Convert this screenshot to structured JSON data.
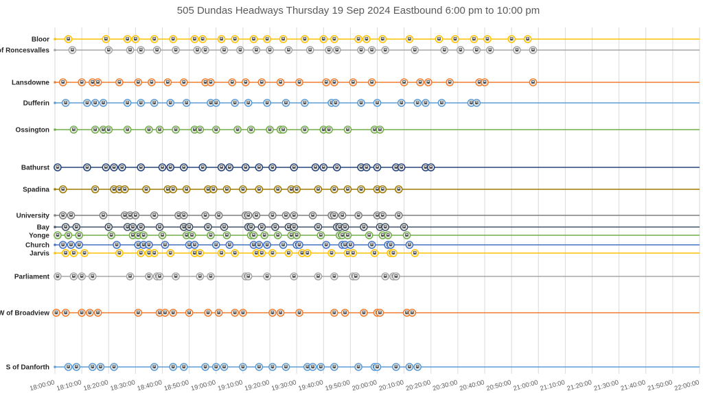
{
  "chart_data": {
    "type": "scatter",
    "title": "505 Dundas Headways Thursday 19 Sep 2024 Eastbound 6:00 pm to 10:00 pm",
    "xlim": [
      "18:00:00",
      "22:00:00"
    ],
    "x_ticks": [
      "18:00:00",
      "18:10:00",
      "18:20:00",
      "18:30:00",
      "18:40:00",
      "18:50:00",
      "19:00:00",
      "19:10:00",
      "19:20:00",
      "19:30:00",
      "19:40:00",
      "19:50:00",
      "20:00:00",
      "20:10:00",
      "20:20:00",
      "20:30:00",
      "20:40:00",
      "20:50:00",
      "21:00:00",
      "21:10:00",
      "21:20:00",
      "21:30:00",
      "21:40:00",
      "21:50:00",
      "22:00:00"
    ],
    "grid": "vertical",
    "marker": "streetcar-icon",
    "series": [
      {
        "name": "Bloor",
        "color": "#ffc000",
        "x": [
          "18:05:00",
          "18:19:00",
          "18:27:00",
          "18:30:00",
          "18:37:00",
          "18:44:00",
          "18:52:00",
          "18:55:00",
          "19:02:00",
          "19:07:00",
          "19:14:00",
          "19:19:00",
          "19:25:00",
          "19:33:00",
          "19:40:00",
          "19:44:00",
          "19:53:00",
          "19:56:00",
          "20:02:00",
          "20:12:00",
          "20:23:00",
          "20:29:00",
          "20:36:00",
          "20:41:00",
          "20:50:00",
          "20:56:00"
        ]
      },
      {
        "name": "E of Roncesvalles",
        "color": "#a5a5a5",
        "x": [
          "18:06:30",
          "18:20:00",
          "18:28:00",
          "18:32:00",
          "18:38:00",
          "18:45:00",
          "18:53:00",
          "18:56:00",
          "19:03:00",
          "19:09:00",
          "19:15:00",
          "19:20:00",
          "19:27:00",
          "19:35:00",
          "19:42:00",
          "19:45:00",
          "19:54:00",
          "19:58:00",
          "20:03:00",
          "20:14:00",
          "20:25:00",
          "20:31:00",
          "20:37:00",
          "20:42:00",
          "20:52:00",
          "20:58:00"
        ]
      },
      {
        "name": "Lansdowne",
        "color": "#ed7d31",
        "x": [
          "18:03:00",
          "18:10:00",
          "18:14:00",
          "18:16:00",
          "18:24:00",
          "18:31:00",
          "18:36:00",
          "18:42:00",
          "18:48:00",
          "18:56:00",
          "18:58:00",
          "19:06:00",
          "19:11:00",
          "19:17:00",
          "19:24:00",
          "19:31:00",
          "19:41:00",
          "19:44:00",
          "19:51:00",
          "19:58:00",
          "20:10:00",
          "20:16:00",
          "20:19:00",
          "20:27:00",
          "20:38:00",
          "20:40:00",
          "20:58:00"
        ]
      },
      {
        "name": "Dufferin",
        "color": "#5b9bd5",
        "x": [
          "18:04:00",
          "18:12:00",
          "18:15:00",
          "18:18:00",
          "18:27:00",
          "18:32:00",
          "18:37:00",
          "18:43:00",
          "18:49:00",
          "18:58:00",
          "19:00:00",
          "19:07:00",
          "19:12:00",
          "19:19:00",
          "19:26:00",
          "19:33:00",
          "19:43:00",
          "19:44:30",
          "19:54:00",
          "20:00:00",
          "20:09:00",
          "20:15:00",
          "20:18:00",
          "20:24:00",
          "20:35:00",
          "20:37:00"
        ]
      },
      {
        "name": "Ossington",
        "color": "#70ad47",
        "x": [
          "18:07:00",
          "18:15:00",
          "18:18:00",
          "18:20:00",
          "18:27:00",
          "18:35:00",
          "18:39:00",
          "18:45:00",
          "18:52:00",
          "18:54:00",
          "19:00:00",
          "19:08:00",
          "19:13:00",
          "19:20:00",
          "19:24:00",
          "19:25:00",
          "19:33:00",
          "19:40:00",
          "19:42:00",
          "19:49:00",
          "19:59:00",
          "20:01:00"
        ]
      },
      {
        "name": "Bathurst",
        "color": "#264478",
        "x": [
          "18:01:00",
          "18:12:00",
          "18:19:00",
          "18:22:00",
          "18:25:00",
          "18:32:00",
          "18:40:00",
          "18:43:00",
          "18:48:00",
          "18:55:00",
          "19:02:00",
          "19:05:00",
          "19:11:00",
          "19:16:00",
          "19:21:00",
          "19:29:00",
          "19:37:00",
          "19:40:00",
          "19:45:00",
          "19:54:00",
          "19:56:00",
          "20:00:00",
          "20:07:00",
          "20:09:00",
          "20:18:00",
          "20:20:00"
        ]
      },
      {
        "name": "Spadina",
        "color": "#9e7a00",
        "x": [
          "18:03:00",
          "18:15:00",
          "18:22:00",
          "18:24:00",
          "18:26:00",
          "18:34:00",
          "18:42:00",
          "18:44:00",
          "18:49:00",
          "18:57:00",
          "18:59:00",
          "19:04:00",
          "19:10:00",
          "19:16:00",
          "19:23:00",
          "19:28:00",
          "19:30:00",
          "19:38:00",
          "19:44:00",
          "19:49:00",
          "19:54:00",
          "20:00:00",
          "20:02:00",
          "20:08:00"
        ]
      },
      {
        "name": "University",
        "color": "#7f7f7f",
        "x": [
          "18:03:00",
          "18:06:00",
          "18:18:00",
          "18:26:00",
          "18:28:00",
          "18:30:00",
          "18:37:00",
          "18:46:00",
          "18:48:00",
          "18:56:00",
          "19:01:00",
          "19:11:00",
          "19:12:00",
          "19:15:00",
          "19:21:00",
          "19:26:00",
          "19:29:00",
          "19:36:00",
          "19:43:00",
          "19:44:00",
          "19:47:00",
          "19:53:00",
          "20:00:00",
          "20:02:00",
          "20:08:00"
        ]
      },
      {
        "name": "Bay",
        "color": "#44546a",
        "x": [
          "18:04:00",
          "18:08:00",
          "18:20:00",
          "18:27:00",
          "18:29:00",
          "18:32:00",
          "18:39:00",
          "18:48:00",
          "18:50:00",
          "18:57:00",
          "19:03:00",
          "19:12:00",
          "19:13:00",
          "19:17:00",
          "19:22:00",
          "19:27:00",
          "19:29:00",
          "19:38:00",
          "19:45:00",
          "19:46:00",
          "19:48:00",
          "19:55:00",
          "20:01:00",
          "20:03:00",
          "20:10:00"
        ]
      },
      {
        "name": "Yonge",
        "color": "#70ad47",
        "x": [
          "18:01:00",
          "18:05:00",
          "18:09:00",
          "18:21:00",
          "18:29:00",
          "18:31:00",
          "18:33:00",
          "18:40:00",
          "18:49:00",
          "18:51:00",
          "18:58:00",
          "19:04:00",
          "19:13:00",
          "19:14:00",
          "19:18:00",
          "19:23:00",
          "19:28:00",
          "19:30:00",
          "19:39:00",
          "19:46:00",
          "19:47:00",
          "19:49:00",
          "19:57:00",
          "20:02:00",
          "20:04:00",
          "20:11:00"
        ]
      },
      {
        "name": "Church",
        "color": "#4472c4",
        "x": [
          "18:03:00",
          "18:06:00",
          "18:09:00",
          "18:23:00",
          "18:31:00",
          "18:33:00",
          "18:35:00",
          "18:41:00",
          "18:50:00",
          "18:52:00",
          "19:00:00",
          "19:05:00",
          "19:14:00",
          "19:16:00",
          "19:19:00",
          "19:25:00",
          "19:30:00",
          "19:31:00",
          "19:41:00",
          "19:47:00",
          "19:48:00",
          "19:50:00",
          "19:58:00",
          "20:04:00",
          "20:05:00",
          "20:12:00"
        ]
      },
      {
        "name": "Jarvis",
        "color": "#ffc000",
        "x": [
          "18:04:00",
          "18:07:00",
          "18:11:00",
          "18:24:00",
          "18:32:00",
          "18:35:00",
          "18:37:00",
          "18:43:00",
          "18:52:00",
          "18:54:00",
          "19:02:00",
          "19:07:00",
          "19:15:00",
          "19:17:00",
          "19:21:00",
          "19:27:00",
          "19:32:00",
          "19:34:00",
          "19:43:00",
          "19:49:00",
          "19:51:00",
          "19:59:00",
          "20:05:00",
          "20:06:00",
          "20:14:00"
        ]
      },
      {
        "name": "Parliament",
        "color": "#a5a5a5",
        "x": [
          "18:01:00",
          "18:07:00",
          "18:10:00",
          "18:14:00",
          "18:28:00",
          "18:35:00",
          "18:38:00",
          "18:39:00",
          "18:45:00",
          "18:54:00",
          "18:58:00",
          "19:11:00",
          "19:12:00",
          "19:19:00",
          "19:29:00",
          "19:38:00",
          "19:44:00",
          "19:51:00",
          "19:52:00",
          "20:03:00",
          "20:06:00",
          "20:07:00"
        ]
      },
      {
        "name": "W of Broadview",
        "color": "#ed7d31",
        "x": [
          "18:00:30",
          "18:04:00",
          "18:10:00",
          "18:13:00",
          "18:16:00",
          "18:31:00",
          "18:39:00",
          "18:41:00",
          "18:44:00",
          "18:50:00",
          "18:57:00",
          "19:01:00",
          "19:07:00",
          "19:10:00",
          "19:21:00",
          "19:24:00",
          "19:31:00",
          "19:44:00",
          "19:48:00",
          "19:55:00",
          "20:00:00",
          "20:01:00",
          "20:11:00",
          "20:13:00"
        ]
      },
      {
        "name": "S of Danforth",
        "color": "#5b9bd5",
        "x": [
          "18:05:00",
          "18:08:00",
          "18:14:00",
          "18:17:00",
          "18:22:00",
          "18:37:00",
          "18:44:00",
          "18:48:00",
          "18:56:00",
          "19:00:00",
          "19:03:00",
          "19:10:00",
          "19:16:00",
          "19:21:00",
          "19:26:00",
          "19:34:00",
          "19:36:00",
          "19:39:00",
          "19:44:00",
          "19:53:00",
          "19:59:00",
          "20:00:00",
          "20:07:00",
          "20:12:00",
          "20:15:00"
        ]
      }
    ]
  }
}
